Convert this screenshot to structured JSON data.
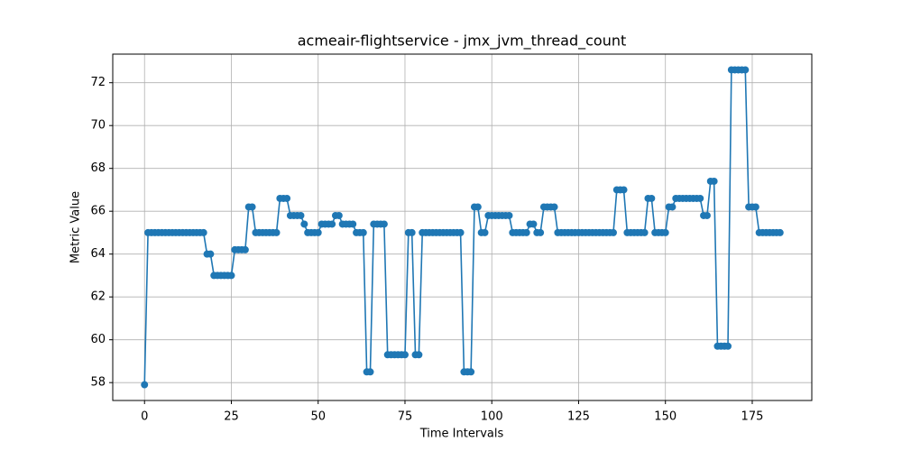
{
  "chart_data": {
    "type": "line",
    "title": "acmeair-flightservice - jmx_jvm_thread_count",
    "xlabel": "Time Intervals",
    "ylabel": "Metric Value",
    "x": [
      0,
      1,
      2,
      3,
      4,
      5,
      6,
      7,
      8,
      9,
      10,
      11,
      12,
      13,
      14,
      15,
      16,
      17,
      18,
      19,
      20,
      21,
      22,
      23,
      24,
      25,
      26,
      27,
      28,
      29,
      30,
      31,
      32,
      33,
      34,
      35,
      36,
      37,
      38,
      39,
      40,
      41,
      42,
      43,
      44,
      45,
      46,
      47,
      48,
      49,
      50,
      51,
      52,
      53,
      54,
      55,
      56,
      57,
      58,
      59,
      60,
      61,
      62,
      63,
      64,
      65,
      66,
      67,
      68,
      69,
      70,
      71,
      72,
      73,
      74,
      75,
      76,
      77,
      78,
      79,
      80,
      81,
      82,
      83,
      84,
      85,
      86,
      87,
      88,
      89,
      90,
      91,
      92,
      93,
      94,
      95,
      96,
      97,
      98,
      99,
      100,
      101,
      102,
      103,
      104,
      105,
      106,
      107,
      108,
      109,
      110,
      111,
      112,
      113,
      114,
      115,
      116,
      117,
      118,
      119,
      120,
      121,
      122,
      123,
      124,
      125,
      126,
      127,
      128,
      129,
      130,
      131,
      132,
      133,
      134,
      135,
      136,
      137,
      138,
      139,
      140,
      141,
      142,
      143,
      144,
      145,
      146,
      147,
      148,
      149,
      150,
      151,
      152,
      153,
      154,
      155,
      156,
      157,
      158,
      159,
      160,
      161,
      162,
      163,
      164,
      165,
      166,
      167,
      168,
      169,
      170,
      171,
      172,
      173,
      174,
      175,
      176,
      177,
      178,
      179,
      180,
      181,
      182,
      183
    ],
    "series": [
      {
        "name": "jmx_jvm_thread_count",
        "color": "#1f77b4",
        "values": [
          57.9,
          65,
          65,
          65,
          65,
          65,
          65,
          65,
          65,
          65,
          65,
          65,
          65,
          65,
          65,
          65,
          65,
          65,
          64,
          64,
          63,
          63,
          63,
          63,
          63,
          63,
          64.2,
          64.2,
          64.2,
          64.2,
          66.2,
          66.2,
          65,
          65,
          65,
          65,
          65,
          65,
          65,
          66.6,
          66.6,
          66.6,
          65.8,
          65.8,
          65.8,
          65.8,
          65.4,
          65,
          65,
          65,
          65,
          65.4,
          65.4,
          65.4,
          65.4,
          65.8,
          65.8,
          65.4,
          65.4,
          65.4,
          65.4,
          65,
          65,
          65,
          58.5,
          58.5,
          65.4,
          65.4,
          65.4,
          65.4,
          59.3,
          59.3,
          59.3,
          59.3,
          59.3,
          59.3,
          65,
          65,
          59.3,
          59.3,
          65,
          65,
          65,
          65,
          65,
          65,
          65,
          65,
          65,
          65,
          65,
          65,
          58.5,
          58.5,
          58.5,
          66.2,
          66.2,
          65,
          65,
          65.8,
          65.8,
          65.8,
          65.8,
          65.8,
          65.8,
          65.8,
          65,
          65,
          65,
          65,
          65,
          65.4,
          65.4,
          65,
          65,
          66.2,
          66.2,
          66.2,
          66.2,
          65,
          65,
          65,
          65,
          65,
          65,
          65,
          65,
          65,
          65,
          65,
          65,
          65,
          65,
          65,
          65,
          65,
          67,
          67,
          67,
          65,
          65,
          65,
          65,
          65,
          65,
          66.6,
          66.6,
          65,
          65,
          65,
          65,
          66.2,
          66.2,
          66.6,
          66.6,
          66.6,
          66.6,
          66.6,
          66.6,
          66.6,
          66.6,
          65.8,
          65.8,
          67.4,
          67.4,
          59.7,
          59.7,
          59.7,
          59.7,
          72.6,
          72.6,
          72.6,
          72.6,
          72.6,
          66.2,
          66.2,
          66.2,
          65,
          65,
          65,
          65,
          65,
          65,
          65
        ]
      }
    ],
    "xlim": [
      -9.15,
      192.15
    ],
    "xticks": [
      0,
      25,
      50,
      75,
      100,
      125,
      150,
      175
    ],
    "ylim": [
      57.165,
      73.335
    ],
    "yticks": [
      58,
      60,
      62,
      64,
      66,
      68,
      70,
      72
    ],
    "grid": true
  }
}
